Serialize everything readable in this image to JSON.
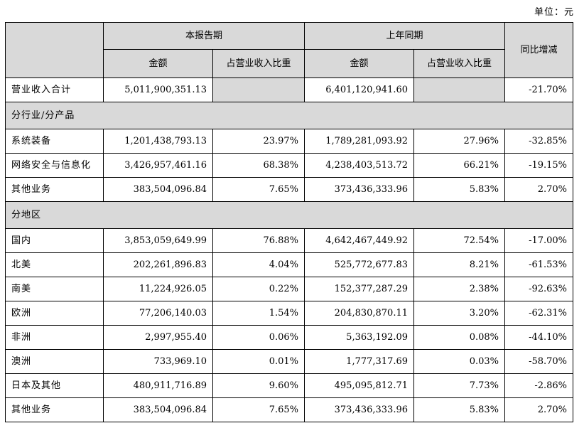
{
  "unit_label": "单位：元",
  "header": {
    "current_period": "本报告期",
    "prior_period": "上年同期",
    "yoy_change": "同比增减",
    "amount": "金额",
    "share_of_revenue": "占营业收入比重"
  },
  "total": {
    "label": "营业收入合计",
    "current_amount": "5,011,900,351.13",
    "current_share": "",
    "prior_amount": "6,401,120,941.60",
    "prior_share": "",
    "yoy": "-21.70%"
  },
  "sections": [
    {
      "title": "分行业/分产品",
      "rows": [
        {
          "label": "系统装备",
          "current_amount": "1,201,438,793.13",
          "current_share": "23.97%",
          "prior_amount": "1,789,281,093.92",
          "prior_share": "27.96%",
          "yoy": "-32.85%"
        },
        {
          "label": "网络安全与信息化",
          "current_amount": "3,426,957,461.16",
          "current_share": "68.38%",
          "prior_amount": "4,238,403,513.72",
          "prior_share": "66.21%",
          "yoy": "-19.15%"
        },
        {
          "label": "其他业务",
          "current_amount": "383,504,096.84",
          "current_share": "7.65%",
          "prior_amount": "373,436,333.96",
          "prior_share": "5.83%",
          "yoy": "2.70%"
        }
      ]
    },
    {
      "title": "分地区",
      "rows": [
        {
          "label": "国内",
          "current_amount": "3,853,059,649.99",
          "current_share": "76.88%",
          "prior_amount": "4,642,467,449.92",
          "prior_share": "72.54%",
          "yoy": "-17.00%"
        },
        {
          "label": "北美",
          "current_amount": "202,261,896.83",
          "current_share": "4.04%",
          "prior_amount": "525,772,677.83",
          "prior_share": "8.21%",
          "yoy": "-61.53%"
        },
        {
          "label": "南美",
          "current_amount": "11,224,926.05",
          "current_share": "0.22%",
          "prior_amount": "152,377,287.29",
          "prior_share": "2.38%",
          "yoy": "-92.63%"
        },
        {
          "label": "欧洲",
          "current_amount": "77,206,140.03",
          "current_share": "1.54%",
          "prior_amount": "204,830,870.11",
          "prior_share": "3.20%",
          "yoy": "-62.31%"
        },
        {
          "label": "非洲",
          "current_amount": "2,997,955.40",
          "current_share": "0.06%",
          "prior_amount": "5,363,192.09",
          "prior_share": "0.08%",
          "yoy": "-44.10%"
        },
        {
          "label": "澳洲",
          "current_amount": "733,969.10",
          "current_share": "0.01%",
          "prior_amount": "1,777,317.69",
          "prior_share": "0.03%",
          "yoy": "-58.70%"
        },
        {
          "label": "日本及其他",
          "current_amount": "480,911,716.89",
          "current_share": "9.60%",
          "prior_amount": "495,095,812.71",
          "prior_share": "7.73%",
          "yoy": "-2.86%"
        },
        {
          "label": "其他业务",
          "current_amount": "383,504,096.84",
          "current_share": "7.65%",
          "prior_amount": "373,436,333.96",
          "prior_share": "5.83%",
          "yoy": "2.70%"
        }
      ]
    }
  ],
  "colors": {
    "header_fill": "#d9d9d9",
    "border": "#000000"
  }
}
